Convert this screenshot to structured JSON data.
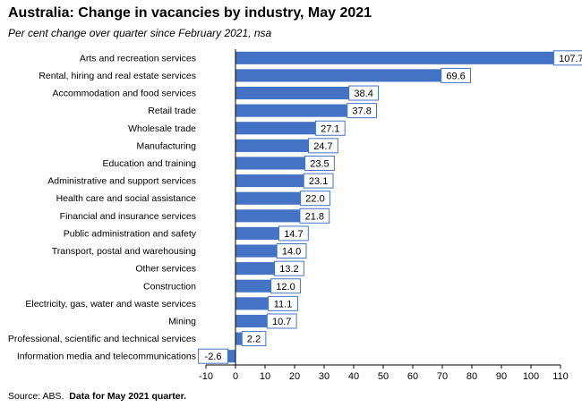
{
  "chart_data": {
    "type": "bar",
    "orientation": "horizontal",
    "title": "Australia: Change in vacancies by industry, May 2021",
    "subtitle": "Per cent change over quarter since February 2021, nsa",
    "categories": [
      "Arts and recreation services",
      "Rental, hiring and real estate services",
      "Accommodation and food services",
      "Retail trade",
      "Wholesale trade",
      "Manufacturing",
      "Education and training",
      "Administrative and support services",
      "Health care and social assistance",
      "Financial and insurance services",
      "Public administration and safety",
      "Transport, postal and warehousing",
      "Other services",
      "Construction",
      "Electricity, gas, water and waste services",
      "Mining",
      "Professional, scientific and technical services",
      "Information media and telecommunications"
    ],
    "values": [
      107.7,
      69.6,
      38.4,
      37.8,
      27.1,
      24.7,
      23.5,
      23.1,
      22.0,
      21.8,
      14.7,
      14.0,
      13.2,
      12.0,
      11.1,
      10.7,
      2.2,
      -2.6
    ],
    "value_labels": [
      "107.7",
      "69.6",
      "38.4",
      "37.8",
      "27.1",
      "24.7",
      "23.5",
      "23.1",
      "22.0",
      "21.8",
      "14.7",
      "14.0",
      "13.2",
      "12.0",
      "11.1",
      "10.7",
      "2.2",
      "-2.6"
    ],
    "xlim": [
      -10,
      110
    ],
    "x_ticks": [
      -10,
      0,
      10,
      20,
      30,
      40,
      50,
      60,
      70,
      80,
      90,
      100,
      110
    ],
    "grid": false,
    "legend": "none",
    "bar_color": "#4472C4",
    "label_border_color": "#4472C4"
  },
  "footnote": {
    "source": "Source: ABS.",
    "note": "Data for May 2021 quarter."
  }
}
